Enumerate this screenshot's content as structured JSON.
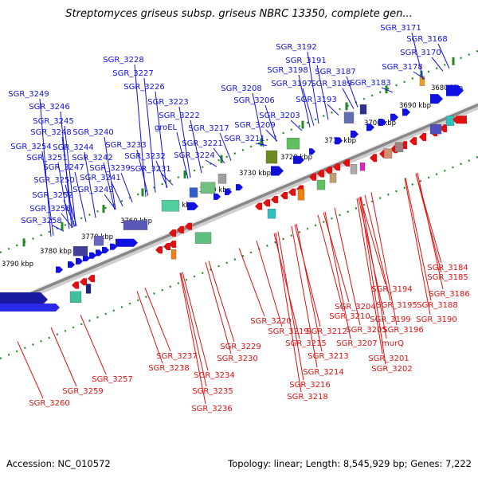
{
  "title": "Streptomyces griseus subsp. griseus NBRC 13350, complete gen...",
  "accession": "Accession: NC_010572",
  "topology": "Topology: linear; Length: 8,545,929 bp; Genes: 7,222",
  "colors": {
    "forward_strand": "#1010e0",
    "reverse_strand": "#e01010",
    "backbone": "#888888",
    "tick": "#228822"
  },
  "scale_labels": [
    "3680 kbp",
    "3690 kbp",
    "3700 kbp",
    "3710 kbp",
    "3720 kbp",
    "3730 kbp",
    "3740 kbp",
    "3750 kbp",
    "3760 kbp",
    "3770 kbp",
    "3780 kbp",
    "3790 kbp"
  ],
  "forward_gene_labels": [
    "SGR_3171",
    "SGR_3168",
    "SGR_3170",
    "SGR_3178",
    "SGR_3192",
    "SGR_3191",
    "SGR_3187",
    "SGR_3183",
    "SGR_3198",
    "SGR_3197",
    "SGR_3189",
    "SGR_3193",
    "SGR_3228",
    "SGR_3227",
    "SGR_3226",
    "SGR_3208",
    "SGR_3206",
    "SGR_3203",
    "SGR_3209",
    "SGR_3211",
    "SGR_3223",
    "SGR_3222",
    "groEL",
    "SGR_3217",
    "SGR_3221",
    "SGR_3224",
    "SGR_3249",
    "SGR_3246",
    "SGR_3245",
    "SGR_3248",
    "SGR_3240",
    "SGR_3254",
    "SGR_3244",
    "SGR_3233",
    "SGR_3251",
    "SGR_3242",
    "SGR_3232",
    "SGR_3231",
    "SGR_3247",
    "SGR_3239",
    "SGR_3250",
    "SGR_3241",
    "SGR_3243",
    "SGR_3252",
    "SGR_3256",
    "SGR_3258"
  ],
  "reverse_gene_labels": [
    "SGR_3184",
    "SGR_3185",
    "SGR_3186",
    "SGR_3188",
    "SGR_3194",
    "SGR_3195",
    "SGR_3190",
    "SGR_3204",
    "SGR_3199",
    "SGR_3196",
    "SGR_3210",
    "SGR_3205",
    "murQ",
    "SGR_3220",
    "SGR_3219",
    "SGR_3212",
    "SGR_3207",
    "SGR_3215",
    "SGR_3213",
    "SGR_3201",
    "SGR_3202",
    "SGR_3214",
    "SGR_3216",
    "SGR_3218",
    "SGR_3229",
    "SGR_3230",
    "SGR_3237",
    "SGR_3238",
    "SGR_3234",
    "SGR_3235",
    "SGR_3236",
    "SGR_3257",
    "SGR_3259",
    "SGR_3260"
  ]
}
